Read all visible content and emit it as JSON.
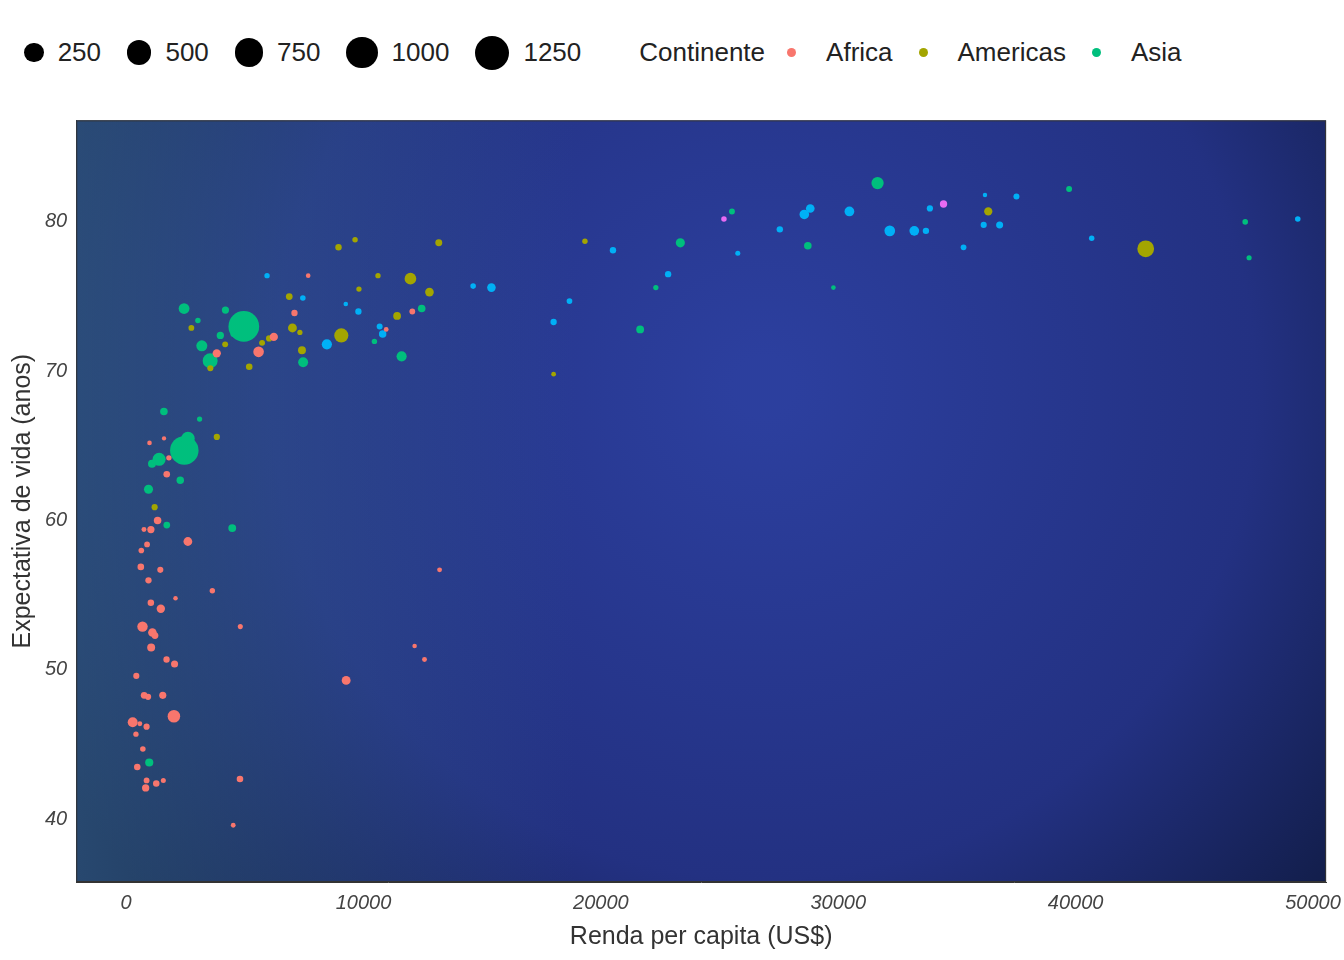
{
  "chart_data": {
    "type": "bubble",
    "x_label": "Renda per capita (US$)",
    "y_label": "Expectativa de vida (anos)",
    "legend_title": "Continente",
    "size_legend": [
      250,
      500,
      750,
      1000,
      1250
    ],
    "xlim": [
      -2100,
      50550
    ],
    "xticks": [
      0,
      10000,
      20000,
      30000,
      40000,
      50000
    ],
    "ylim": [
      35.8,
      86.8
    ],
    "yticks": [
      40,
      50,
      60,
      70,
      80
    ],
    "grid": false,
    "legend": "top",
    "series": [
      {
        "name": "Africa",
        "color": "#F8766D",
        "x": [
          6223,
          4797,
          1441,
          12570,
          1217,
          430,
          2042,
          706,
          1704,
          986,
          278,
          3633,
          1545,
          2082,
          5581,
          12154,
          641,
          691,
          13206,
          753,
          1327,
          943,
          579,
          1463,
          1569,
          415,
          12057,
          1045,
          759,
          1043,
          1803,
          10957,
          3820,
          824,
          4811,
          620,
          2014,
          7670,
          863,
          1598,
          1712,
          863,
          926,
          9270,
          2602,
          4513,
          1107,
          883,
          7093,
          1056,
          1271,
          470
        ],
        "values": [
          72.3,
          42.7,
          56.7,
          50.7,
          52.3,
          49.6,
          50.4,
          44.7,
          50.7,
          65.2,
          46.5,
          55.3,
          48.3,
          54.8,
          71.3,
          51.6,
          58.0,
          52.9,
          56.7,
          59.4,
          60.0,
          56.0,
          46.4,
          54.1,
          42.6,
          45.7,
          74.0,
          59.4,
          48.3,
          54.5,
          64.2,
          72.8,
          71.2,
          42.1,
          52.9,
          56.9,
          46.9,
          76.4,
          46.2,
          65.5,
          63.1,
          42.6,
          48.2,
          49.3,
          58.6,
          39.6,
          52.5,
          58.4,
          73.9,
          51.5,
          42.4,
          43.5
        ],
        "size": [
          33.3,
          12.4,
          8.1,
          1.6,
          14.3,
          8.4,
          17.7,
          4.4,
          10.2,
          0.7,
          64.6,
          3.8,
          18.0,
          0.5,
          80.3,
          0.55,
          4.9,
          76.5,
          1.45,
          1.7,
          22.9,
          9.9,
          1.5,
          35.6,
          2.0,
          3.2,
          6.0,
          19.2,
          13.3,
          12.0,
          3.3,
          1.25,
          33.8,
          20.0,
          2.1,
          12.9,
          135.0,
          0.8,
          8.9,
          0.2,
          12.3,
          6.1,
          9.1,
          44.0,
          42.3,
          1.1,
          38.1,
          5.7,
          10.3,
          29.2,
          11.7,
          12.3
        ]
      },
      {
        "name": "Americas",
        "color": "#A3A500",
        "x": [
          12779,
          3822,
          9066,
          36319,
          13172,
          7007,
          9645,
          8948,
          6025,
          6873,
          5728,
          5186,
          1202,
          3548,
          7321,
          11978,
          2749,
          9809,
          4173,
          7409,
          19329,
          18009,
          42952,
          10611,
          11416
        ],
        "values": [
          75.3,
          65.6,
          72.4,
          80.7,
          78.6,
          72.9,
          78.8,
          78.3,
          72.2,
          75.0,
          71.9,
          70.3,
          60.9,
          70.2,
          72.6,
          76.2,
          72.9,
          75.5,
          71.8,
          71.4,
          78.7,
          69.8,
          78.2,
          76.4,
          73.7
        ],
        "size": [
          40.3,
          9.1,
          190.0,
          33.4,
          16.3,
          44.2,
          4.1,
          11.4,
          9.3,
          13.8,
          6.9,
          12.6,
          8.5,
          7.5,
          2.8,
          108.7,
          5.7,
          3.2,
          6.7,
          28.7,
          3.9,
          1.1,
          301.1,
          3.4,
          26.1
        ]
      },
      {
        "name": "Asia",
        "color": "#00BF7D",
        "x": [
          975,
          29796,
          1391,
          1714,
          4959,
          39725,
          2452,
          3541,
          11606,
          4471,
          25523,
          31656,
          4519,
          1593,
          23348,
          47307,
          10461,
          12452,
          3096,
          944,
          1091,
          22316,
          2606,
          3190,
          21655,
          47143,
          3970,
          4185,
          28718,
          7458,
          2442,
          3025,
          2281
        ],
        "values": [
          43.8,
          75.6,
          64.1,
          59.7,
          73.0,
          82.2,
          64.7,
          70.7,
          71.0,
          59.5,
          80.7,
          82.6,
          72.5,
          67.3,
          78.6,
          77.6,
          72.0,
          74.2,
          66.8,
          62.1,
          63.8,
          75.6,
          65.5,
          71.7,
          72.8,
          80.0,
          72.4,
          74.1,
          78.4,
          70.6,
          74.2,
          73.4,
          62.7
        ],
        "size": [
          31.9,
          0.7,
          150.4,
          14.1,
          1318.7,
          6.98,
          1110.4,
          223.5,
          69.5,
          27.5,
          6.4,
          127.5,
          6.1,
          23.3,
          49.0,
          2.5,
          3.9,
          24.8,
          2.9,
          47.8,
          28.9,
          3.2,
          169.3,
          91.1,
          27.6,
          4.55,
          20.4,
          19.3,
          23.2,
          65.1,
          85.3,
          4.0,
          22.2
        ]
      },
      {
        "name": null,
        "color": "#00B0F6",
        "x": [
          5937,
          36126,
          33693,
          7446,
          10681,
          14619,
          22833,
          35278,
          33207,
          30470,
          32170,
          27538,
          18009,
          36181,
          40676,
          28570,
          9254,
          36798,
          49357,
          15390,
          20510,
          10808,
          9787,
          18678,
          25768,
          28821,
          33860,
          37506,
          8458,
          33203
        ],
        "values": [
          76.4,
          79.8,
          79.4,
          74.9,
          73.0,
          75.7,
          76.5,
          78.3,
          79.3,
          80.7,
          79.4,
          79.5,
          73.3,
          81.8,
          78.9,
          80.5,
          74.5,
          79.8,
          80.2,
          75.6,
          78.1,
          72.5,
          74.0,
          74.7,
          77.9,
          80.9,
          80.9,
          81.7,
          71.8,
          79.4
        ],
        "size": [
          3.6,
          8.2,
          10.4,
          4.6,
          7.3,
          4.5,
          10.2,
          5.5,
          5.2,
          61.1,
          82.4,
          10.7,
          10.0,
          0.3,
          4.1,
          58.1,
          0.7,
          16.6,
          4.6,
          38.5,
          10.6,
          22.3,
          10.2,
          5.4,
          2.0,
          40.4,
          9.0,
          7.6,
          71.2,
          60.8
        ]
      },
      {
        "name": null,
        "color": "#E76BF3",
        "x": [
          34435,
          25185
        ],
        "values": [
          81.2,
          80.2
        ],
        "size": [
          20.4,
          4.1
        ]
      }
    ]
  }
}
